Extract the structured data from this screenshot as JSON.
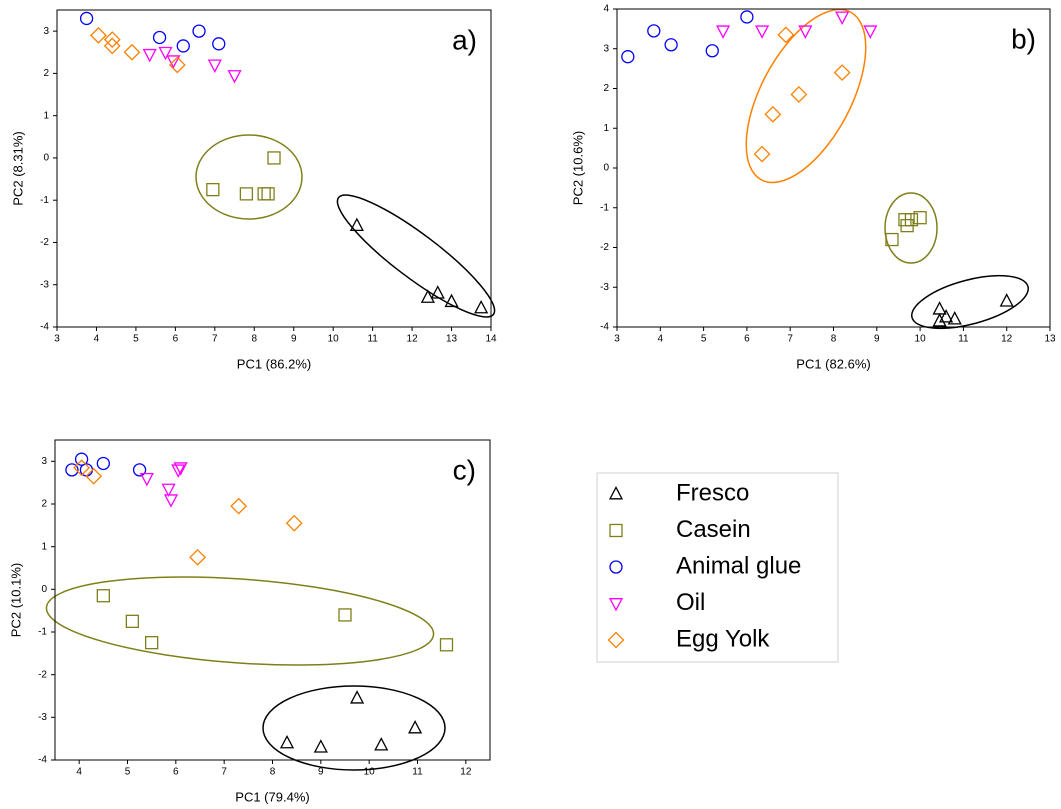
{
  "legend": {
    "entries": [
      {
        "name": "Fresco",
        "color": "#000000",
        "marker": "triangle-up"
      },
      {
        "name": "Casein",
        "color": "#7f7f1a",
        "marker": "square"
      },
      {
        "name": "Animal glue",
        "color": "#0000ff",
        "marker": "circle"
      },
      {
        "name": "Oil",
        "color": "#ff00ff",
        "marker": "triangle-down"
      },
      {
        "name": "Egg Yolk",
        "color": "#ff8000",
        "marker": "diamond"
      }
    ]
  },
  "chart_data": [
    {
      "type": "scatter",
      "panel_label": "a)",
      "xlabel": "PC1 (86.2%)",
      "ylabel": "PC2 (8.31%)",
      "xlim": [
        3,
        14
      ],
      "ylim": [
        -4,
        3.5
      ],
      "xticks": [
        3,
        4,
        5,
        6,
        7,
        8,
        9,
        10,
        11,
        12,
        13,
        14
      ],
      "yticks": [
        -4,
        -3,
        -2,
        -1,
        0,
        1,
        2,
        3
      ],
      "series": [
        {
          "x": [
            10.6,
            12.4,
            12.65,
            13.0,
            13.75
          ],
          "y": [
            -1.6,
            -3.3,
            -3.2,
            -3.4,
            -3.55
          ]
        },
        {
          "x": [
            6.95,
            7.8,
            8.25,
            8.35,
            8.5
          ],
          "y": [
            -0.75,
            -0.85,
            -0.85,
            -0.85,
            0.0
          ]
        },
        {
          "x": [
            3.75,
            5.6,
            6.2,
            6.6,
            7.1
          ],
          "y": [
            3.3,
            2.85,
            2.65,
            3.0,
            2.7
          ]
        },
        {
          "x": [
            5.35,
            5.75,
            5.95,
            7.0,
            7.5
          ],
          "y": [
            2.45,
            2.5,
            2.3,
            2.2,
            1.95
          ]
        },
        {
          "x": [
            4.05,
            4.4,
            4.4,
            4.9,
            6.05
          ],
          "y": [
            2.9,
            2.8,
            2.65,
            2.5,
            2.2
          ]
        }
      ]
    },
    {
      "type": "scatter",
      "panel_label": "b)",
      "xlabel": "PC1 (82.6%)",
      "ylabel": "PC2 (10.6%)",
      "xlim": [
        3,
        13
      ],
      "ylim": [
        -4,
        4
      ],
      "xticks": [
        3,
        4,
        5,
        6,
        7,
        8,
        9,
        10,
        11,
        12,
        13
      ],
      "yticks": [
        -4,
        -3,
        -2,
        -1,
        0,
        1,
        2,
        3,
        4
      ],
      "series": [
        {
          "x": [
            10.45,
            10.45,
            10.6,
            10.8,
            12.0
          ],
          "y": [
            -3.55,
            -3.85,
            -3.75,
            -3.8,
            -3.35
          ]
        },
        {
          "x": [
            9.35,
            9.65,
            9.7,
            9.8,
            10.0
          ],
          "y": [
            -1.8,
            -1.3,
            -1.45,
            -1.3,
            -1.25
          ]
        },
        {
          "x": [
            3.25,
            3.85,
            4.25,
            5.2,
            6.0
          ],
          "y": [
            2.8,
            3.45,
            3.1,
            2.95,
            3.8
          ]
        },
        {
          "x": [
            5.45,
            6.35,
            7.35,
            8.2,
            8.85
          ],
          "y": [
            3.45,
            3.45,
            3.45,
            3.8,
            3.45
          ]
        },
        {
          "x": [
            6.35,
            6.6,
            7.2,
            6.9,
            8.2
          ],
          "y": [
            0.35,
            1.35,
            1.85,
            3.35,
            2.4
          ]
        }
      ]
    },
    {
      "type": "scatter",
      "panel_label": "c)",
      "xlabel": "PC1 (79.4%)",
      "ylabel": "PC2 (10.1%)",
      "xlim": [
        3.5,
        12.5
      ],
      "ylim": [
        -4,
        3.5
      ],
      "xticks": [
        4,
        5,
        6,
        7,
        8,
        9,
        10,
        11,
        12
      ],
      "yticks": [
        -4,
        -3,
        -2,
        -1,
        0,
        1,
        2,
        3
      ],
      "series": [
        {
          "x": [
            8.3,
            9.0,
            9.75,
            10.25,
            10.95
          ],
          "y": [
            -3.6,
            -3.7,
            -2.55,
            -3.65,
            -3.25
          ]
        },
        {
          "x": [
            4.5,
            5.1,
            5.5,
            9.5,
            11.6
          ],
          "y": [
            -0.15,
            -0.75,
            -1.25,
            -0.6,
            -1.3
          ]
        },
        {
          "x": [
            3.85,
            4.05,
            4.5,
            5.25,
            4.15
          ],
          "y": [
            2.8,
            3.05,
            2.95,
            2.8,
            2.8
          ]
        },
        {
          "x": [
            5.4,
            5.85,
            5.9,
            6.05,
            6.1
          ],
          "y": [
            2.6,
            2.35,
            2.1,
            2.8,
            2.85
          ]
        },
        {
          "x": [
            4.05,
            4.3,
            6.45,
            7.3,
            8.45
          ],
          "y": [
            2.85,
            2.65,
            0.75,
            1.95,
            1.55
          ]
        }
      ]
    }
  ]
}
